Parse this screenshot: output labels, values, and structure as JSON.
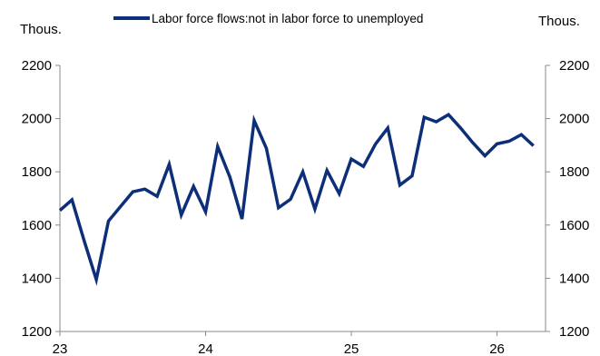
{
  "chart_data": {
    "type": "line",
    "title": "",
    "xlabel": "",
    "ylabel": "",
    "y_unit_left": "Thous.",
    "y_unit_right": "Thous.",
    "ylim": [
      1200,
      2200
    ],
    "yticks": [
      1200,
      1400,
      1600,
      1800,
      2000,
      2200
    ],
    "ytick_labels": [
      "1200",
      "1400",
      "1600",
      "1800",
      "2000",
      "2200"
    ],
    "xlim": [
      2023.0,
      2026.333
    ],
    "xticks": [
      2023,
      2024,
      2025,
      2026
    ],
    "xtick_labels": [
      "23",
      "24",
      "25",
      "26"
    ],
    "grid": false,
    "legend_position": "top",
    "series": [
      {
        "name": "Labor force flows:not in labor force to unemployed",
        "color": "#0d2f7a",
        "x": [
          2023.0,
          2023.083,
          2023.167,
          2023.25,
          2023.333,
          2023.417,
          2023.5,
          2023.583,
          2023.667,
          2023.75,
          2023.833,
          2023.917,
          2024.0,
          2024.083,
          2024.167,
          2024.25,
          2024.333,
          2024.417,
          2024.5,
          2024.583,
          2024.667,
          2024.75,
          2024.833,
          2024.917,
          2025.0,
          2025.083,
          2025.167,
          2025.25,
          2025.333,
          2025.417,
          2025.5,
          2025.583,
          2025.667,
          2025.75,
          2025.833,
          2025.917,
          2026.0,
          2026.083,
          2026.167,
          2026.25
        ],
        "values": [
          1655,
          1695,
          1540,
          1395,
          1615,
          1670,
          1725,
          1735,
          1708,
          1828,
          1638,
          1745,
          1650,
          1895,
          1780,
          1623,
          1993,
          1888,
          1665,
          1697,
          1800,
          1660,
          1805,
          1718,
          1848,
          1820,
          1905,
          1965,
          1750,
          1785,
          2005,
          1988,
          2015,
          1965,
          1910,
          1860,
          1905,
          1915,
          1940,
          1898
        ]
      }
    ]
  }
}
